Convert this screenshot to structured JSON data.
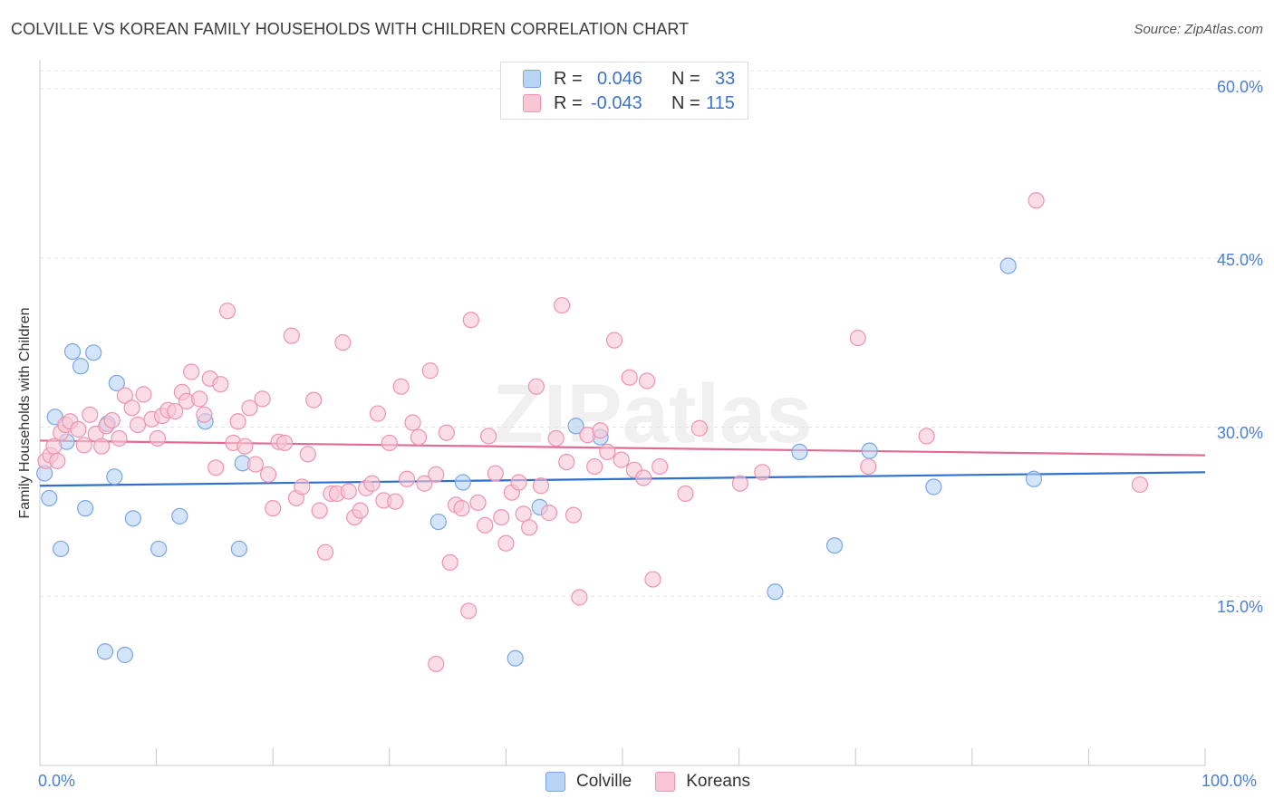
{
  "title": "COLVILLE VS KOREAN FAMILY HOUSEHOLDS WITH CHILDREN CORRELATION CHART",
  "source": "Source: ZipAtlas.com",
  "watermark": "ZIPatlas",
  "legend": {
    "r_label": "R =",
    "n_label": "N =",
    "series": [
      {
        "name": "Colville",
        "r": "0.046",
        "n": "33",
        "fill": "#b9d3f5",
        "stroke": "#7aa6e6"
      },
      {
        "name": "Koreans",
        "r": "-0.043",
        "n": "115",
        "fill": "#f9c6d6",
        "stroke": "#ee93b0"
      }
    ]
  },
  "chart_data": {
    "type": "scatter",
    "title": "COLVILLE VS KOREAN FAMILY HOUSEHOLDS WITH CHILDREN CORRELATION CHART",
    "xlabel": "",
    "ylabel": "Family Households with Children",
    "xlim": [
      0,
      100
    ],
    "ylim": [
      0,
      60
    ],
    "y_ticks": [
      15,
      30,
      45,
      60
    ],
    "y_tick_labels": [
      "15.0%",
      "30.0%",
      "45.0%",
      "60.0%"
    ],
    "x_tick_labels": [
      "0.0%",
      "100.0%"
    ],
    "grid": true,
    "legend_position": "top-center",
    "series": [
      {
        "name": "Colville",
        "color": "#7aa6e6",
        "fill": "#b9d3f5",
        "trend_color": "#2f6fce",
        "trend": [
          [
            0,
            24.8
          ],
          [
            100,
            26.0
          ]
        ],
        "points": [
          [
            0.4,
            25.9
          ],
          [
            0.8,
            23.7
          ],
          [
            1.3,
            30.9
          ],
          [
            1.8,
            19.2
          ],
          [
            2.3,
            28.7
          ],
          [
            2.8,
            36.7
          ],
          [
            3.5,
            35.4
          ],
          [
            3.9,
            22.8
          ],
          [
            4.6,
            36.6
          ],
          [
            5.6,
            10.1
          ],
          [
            5.8,
            30.3
          ],
          [
            6.4,
            25.6
          ],
          [
            6.6,
            33.9
          ],
          [
            7.3,
            9.8
          ],
          [
            8.0,
            21.9
          ],
          [
            10.2,
            19.2
          ],
          [
            12.0,
            22.1
          ],
          [
            14.2,
            30.5
          ],
          [
            17.1,
            19.2
          ],
          [
            17.4,
            26.8
          ],
          [
            34.2,
            21.6
          ],
          [
            36.3,
            25.1
          ],
          [
            40.8,
            9.5
          ],
          [
            42.9,
            22.9
          ],
          [
            46.0,
            30.1
          ],
          [
            48.1,
            29.1
          ],
          [
            63.1,
            15.4
          ],
          [
            65.2,
            27.8
          ],
          [
            68.2,
            19.5
          ],
          [
            71.2,
            27.9
          ],
          [
            76.7,
            24.7
          ],
          [
            83.1,
            44.3
          ],
          [
            85.3,
            25.4
          ]
        ]
      },
      {
        "name": "Koreans",
        "color": "#ee93b0",
        "fill": "#f9c6d6",
        "trend_color": "#e06c94",
        "trend": [
          [
            0,
            28.8
          ],
          [
            100,
            27.5
          ]
        ],
        "points": [
          [
            0.5,
            27.0
          ],
          [
            0.9,
            27.5
          ],
          [
            1.2,
            28.3
          ],
          [
            1.5,
            27.0
          ],
          [
            1.8,
            29.5
          ],
          [
            2.2,
            30.2
          ],
          [
            2.6,
            30.5
          ],
          [
            3.3,
            29.8
          ],
          [
            3.8,
            28.4
          ],
          [
            4.3,
            31.1
          ],
          [
            4.8,
            29.4
          ],
          [
            5.3,
            28.3
          ],
          [
            5.7,
            30.1
          ],
          [
            6.2,
            30.6
          ],
          [
            6.8,
            29.0
          ],
          [
            7.3,
            32.8
          ],
          [
            7.9,
            31.7
          ],
          [
            8.4,
            30.2
          ],
          [
            8.9,
            32.9
          ],
          [
            9.6,
            30.7
          ],
          [
            10.1,
            29.0
          ],
          [
            10.5,
            31.0
          ],
          [
            11.0,
            31.5
          ],
          [
            11.6,
            31.4
          ],
          [
            12.2,
            33.1
          ],
          [
            12.6,
            32.3
          ],
          [
            13.0,
            34.9
          ],
          [
            13.7,
            32.5
          ],
          [
            14.1,
            31.1
          ],
          [
            14.6,
            34.3
          ],
          [
            15.1,
            26.4
          ],
          [
            15.5,
            33.8
          ],
          [
            16.1,
            40.3
          ],
          [
            16.6,
            28.6
          ],
          [
            17.0,
            30.5
          ],
          [
            17.6,
            28.3
          ],
          [
            18.0,
            31.7
          ],
          [
            18.5,
            26.7
          ],
          [
            19.1,
            32.5
          ],
          [
            19.6,
            25.8
          ],
          [
            20.0,
            22.8
          ],
          [
            20.5,
            28.7
          ],
          [
            21.0,
            28.6
          ],
          [
            21.6,
            38.1
          ],
          [
            22.0,
            23.7
          ],
          [
            22.5,
            24.7
          ],
          [
            23.0,
            27.6
          ],
          [
            23.5,
            32.4
          ],
          [
            24.0,
            22.6
          ],
          [
            24.5,
            18.9
          ],
          [
            25.0,
            24.1
          ],
          [
            25.5,
            24.1
          ],
          [
            26.0,
            37.5
          ],
          [
            26.5,
            24.3
          ],
          [
            27.0,
            22.0
          ],
          [
            27.5,
            22.6
          ],
          [
            28.0,
            24.6
          ],
          [
            28.5,
            25.0
          ],
          [
            29.0,
            31.2
          ],
          [
            29.5,
            23.5
          ],
          [
            30.0,
            28.6
          ],
          [
            30.5,
            23.4
          ],
          [
            31.0,
            33.6
          ],
          [
            31.5,
            25.4
          ],
          [
            32.0,
            30.4
          ],
          [
            32.5,
            29.1
          ],
          [
            33.0,
            25.0
          ],
          [
            33.5,
            35.0
          ],
          [
            34.0,
            25.8
          ],
          [
            34.9,
            29.5
          ],
          [
            35.2,
            18.0
          ],
          [
            35.7,
            23.1
          ],
          [
            36.2,
            22.8
          ],
          [
            36.8,
            13.7
          ],
          [
            37.0,
            39.5
          ],
          [
            37.6,
            23.3
          ],
          [
            38.2,
            21.3
          ],
          [
            38.5,
            29.2
          ],
          [
            39.1,
            25.9
          ],
          [
            39.6,
            22.0
          ],
          [
            40.0,
            19.7
          ],
          [
            40.5,
            24.2
          ],
          [
            41.1,
            25.1
          ],
          [
            41.5,
            22.3
          ],
          [
            42.0,
            21.1
          ],
          [
            42.6,
            33.6
          ],
          [
            43.0,
            24.8
          ],
          [
            43.7,
            22.4
          ],
          [
            44.3,
            29.0
          ],
          [
            44.8,
            40.8
          ],
          [
            45.2,
            26.9
          ],
          [
            45.8,
            22.2
          ],
          [
            34.0,
            9.0
          ],
          [
            46.3,
            14.9
          ],
          [
            47.0,
            29.3
          ],
          [
            47.6,
            26.5
          ],
          [
            48.1,
            29.7
          ],
          [
            48.7,
            27.8
          ],
          [
            49.3,
            37.7
          ],
          [
            49.9,
            27.1
          ],
          [
            50.6,
            34.4
          ],
          [
            51.0,
            26.2
          ],
          [
            51.8,
            25.5
          ],
          [
            52.1,
            34.1
          ],
          [
            52.6,
            16.5
          ],
          [
            53.2,
            26.5
          ],
          [
            55.4,
            24.1
          ],
          [
            56.6,
            29.9
          ],
          [
            60.1,
            25.0
          ],
          [
            62.0,
            26.0
          ],
          [
            70.2,
            37.9
          ],
          [
            71.1,
            26.5
          ],
          [
            76.1,
            29.2
          ],
          [
            85.5,
            50.1
          ],
          [
            94.4,
            24.9
          ]
        ]
      }
    ]
  }
}
